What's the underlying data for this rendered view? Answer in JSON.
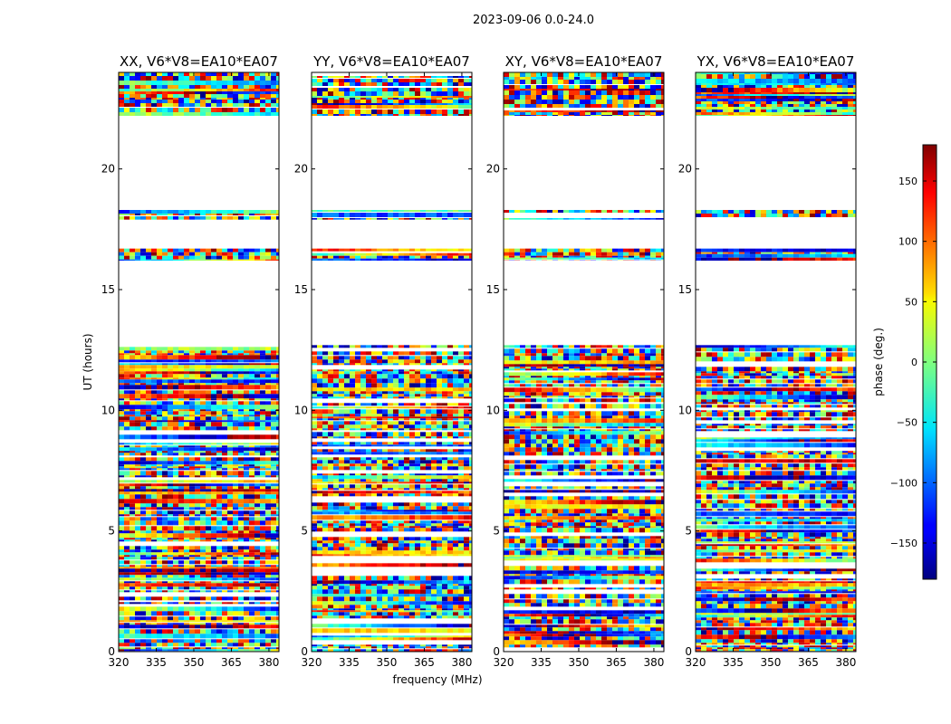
{
  "figure": {
    "suptitle": "2023-09-06 0.0-24.0",
    "xlabel": "frequency (MHz)",
    "ylabel": "UT (hours)",
    "colorbar_label": "phase (deg.)",
    "colorbar_ticks": [
      "150",
      "100",
      "50",
      "0",
      "−50",
      "−100",
      "−150"
    ],
    "colormap": "jet"
  },
  "chart_data": {
    "type": "heatmap",
    "x_ticks": [
      "320",
      "335",
      "350",
      "365",
      "380"
    ],
    "y_ticks": [
      "0",
      "5",
      "10",
      "15",
      "20"
    ],
    "xlim": [
      320,
      384
    ],
    "ylim": [
      0,
      24
    ],
    "clim": [
      -180,
      180
    ],
    "colorbar_tick_values": [
      150,
      100,
      50,
      0,
      -50,
      -100,
      -150
    ],
    "colors": {
      "low": "#00007f",
      "mid": "#7fff7f",
      "high": "#7f0000"
    },
    "panels": [
      {
        "title": "XX, V6*V8=EA10*EA07",
        "polarization": "XX"
      },
      {
        "title": "YY, V6*V8=EA10*EA07",
        "polarization": "YY"
      },
      {
        "title": "XY, V6*V8=EA10*EA07",
        "polarization": "XY"
      },
      {
        "title": "YX, V6*V8=EA10*EA07",
        "polarization": "YX"
      }
    ],
    "data_time_ranges": [
      [
        0.0,
        12.7
      ],
      [
        16.2,
        16.7
      ],
      [
        17.9,
        18.3
      ],
      [
        22.2,
        24.0
      ]
    ]
  }
}
